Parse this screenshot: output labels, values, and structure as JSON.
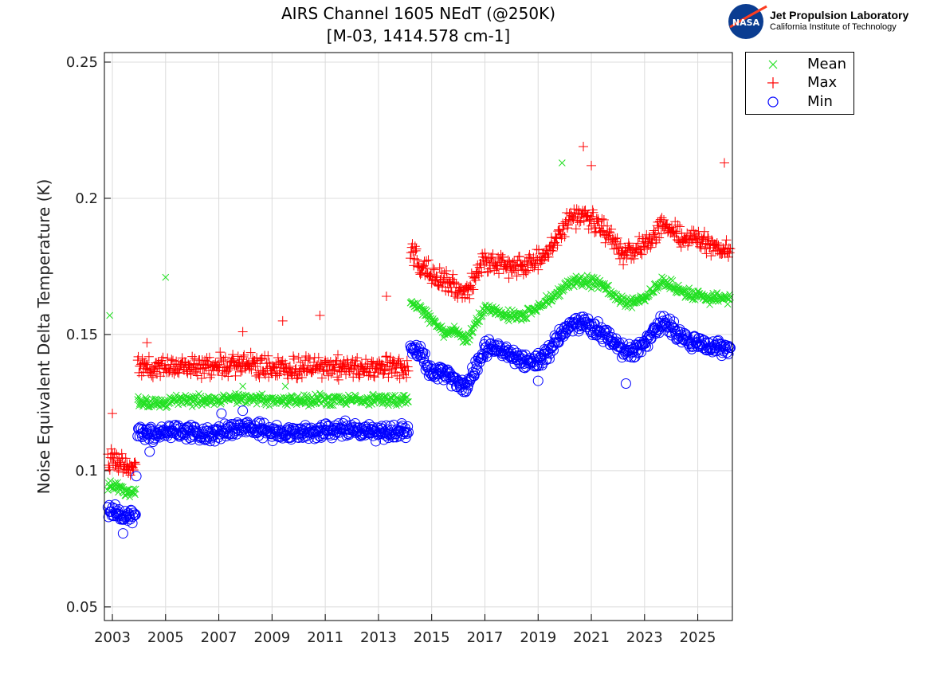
{
  "chart_data": {
    "type": "scatter",
    "title": [
      "AIRS Channel 1605 NEdT (@250K)",
      "[M-03, 1414.578 cm-1]"
    ],
    "xlabel": "",
    "ylabel": "Noise Equivalent Delta Temperature (K)",
    "xlim": [
      2002.7,
      2026.3
    ],
    "ylim": [
      0.045,
      0.2535
    ],
    "xticks": [
      2003,
      2005,
      2007,
      2009,
      2011,
      2013,
      2015,
      2017,
      2019,
      2021,
      2023,
      2025
    ],
    "yticks": [
      0.05,
      0.1,
      0.15,
      0.2,
      0.25
    ],
    "ytick_labels": [
      "0.05",
      "0.1",
      "0.15",
      "0.2",
      "0.25"
    ],
    "grid": true,
    "legend_placement": "outside-top-right",
    "x": [
      2002.83,
      2003.2,
      2003.5,
      2003.88,
      2003.95,
      2005,
      2006,
      2007,
      2008,
      2009,
      2010,
      2011,
      2012,
      2013,
      2014.15,
      2014.2,
      2014.6,
      2015.0,
      2015.5,
      2015.8,
      2016.3,
      2017.0,
      2017.5,
      2018.0,
      2018.5,
      2019.0,
      2019.5,
      2020.0,
      2020.7,
      2021.5,
      2022.3,
      2023.0,
      2023.7,
      2024.5,
      2025.0,
      2025.5,
      2026.25
    ],
    "series": [
      {
        "name": "Mean",
        "marker": "x",
        "color": "#22e022",
        "values": [
          0.095,
          0.094,
          0.092,
          0.092,
          0.125,
          0.125,
          0.126,
          0.126,
          0.127,
          0.126,
          0.126,
          0.126,
          0.126,
          0.126,
          0.126,
          0.162,
          0.16,
          0.155,
          0.15,
          0.152,
          0.148,
          0.16,
          0.158,
          0.157,
          0.157,
          0.16,
          0.163,
          0.168,
          0.17,
          0.168,
          0.161,
          0.163,
          0.17,
          0.165,
          0.164,
          0.163,
          0.163
        ],
        "outliers": [
          [
            2002.9,
            0.157
          ],
          [
            2005.0,
            0.171
          ],
          [
            2019.9,
            0.213
          ],
          [
            2007.9,
            0.131
          ],
          [
            2009.5,
            0.131
          ]
        ]
      },
      {
        "name": "Max",
        "marker": "+",
        "color": "#ff0000",
        "values": [
          0.104,
          0.103,
          0.102,
          0.102,
          0.138,
          0.138,
          0.138,
          0.139,
          0.139,
          0.138,
          0.138,
          0.138,
          0.138,
          0.138,
          0.138,
          0.18,
          0.176,
          0.172,
          0.17,
          0.168,
          0.165,
          0.178,
          0.176,
          0.175,
          0.175,
          0.178,
          0.182,
          0.19,
          0.195,
          0.188,
          0.178,
          0.183,
          0.19,
          0.185,
          0.184,
          0.183,
          0.18
        ],
        "outliers": [
          [
            2003.0,
            0.121
          ],
          [
            2004.3,
            0.147
          ],
          [
            2007.9,
            0.151
          ],
          [
            2009.4,
            0.155
          ],
          [
            2010.8,
            0.157
          ],
          [
            2013.3,
            0.164
          ],
          [
            2020.7,
            0.219
          ],
          [
            2026.0,
            0.213
          ],
          [
            2021.0,
            0.212
          ]
        ]
      },
      {
        "name": "Min",
        "marker": "o",
        "color": "#0000ff",
        "values": [
          0.085,
          0.084,
          0.083,
          0.084,
          0.114,
          0.114,
          0.114,
          0.114,
          0.116,
          0.114,
          0.114,
          0.115,
          0.115,
          0.114,
          0.115,
          0.145,
          0.143,
          0.135,
          0.136,
          0.133,
          0.13,
          0.145,
          0.145,
          0.142,
          0.14,
          0.14,
          0.145,
          0.152,
          0.155,
          0.15,
          0.143,
          0.147,
          0.155,
          0.148,
          0.147,
          0.145,
          0.145
        ],
        "outliers": [
          [
            2003.4,
            0.077
          ],
          [
            2003.9,
            0.098
          ],
          [
            2004.4,
            0.107
          ],
          [
            2007.1,
            0.121
          ],
          [
            2007.9,
            0.122
          ],
          [
            2022.3,
            0.132
          ],
          [
            2019.0,
            0.133
          ]
        ]
      }
    ]
  },
  "logo": {
    "name": "NASA",
    "line1": "Jet Propulsion Laboratory",
    "line2": "California Institute of Technology"
  }
}
